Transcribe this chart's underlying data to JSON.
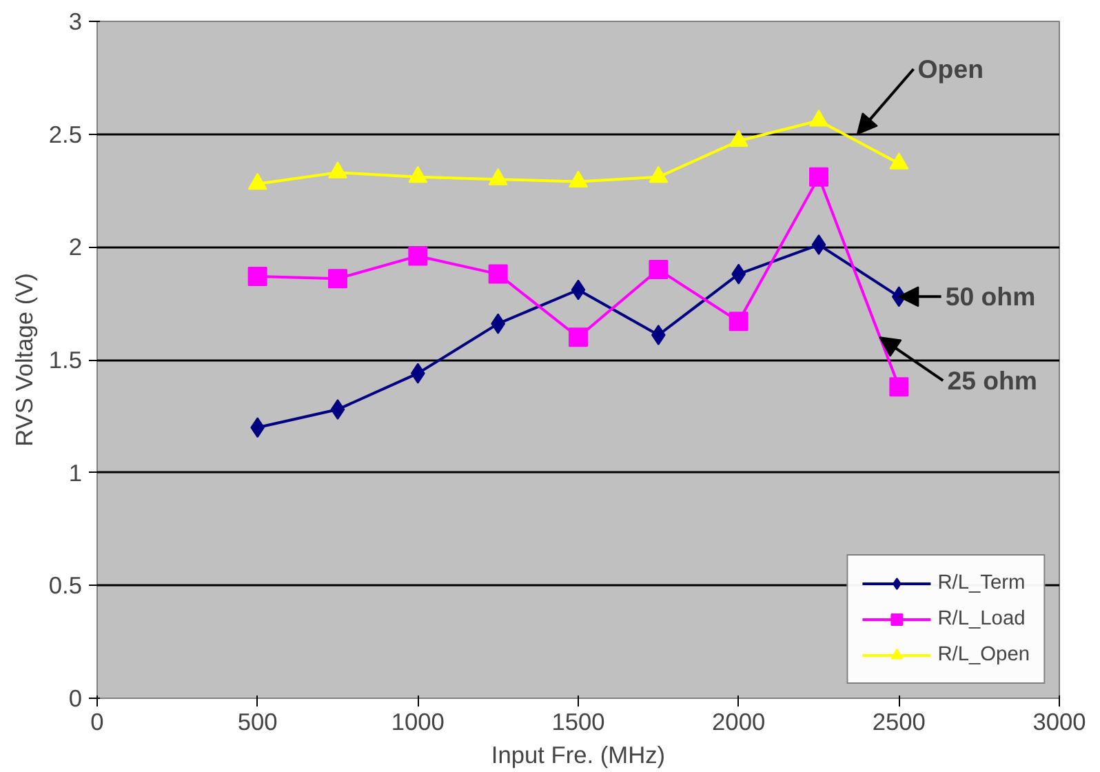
{
  "chart_data": {
    "type": "line",
    "xlabel": "Input Fre. (MHz)",
    "ylabel": "RVS Voltage (V)",
    "x": [
      500,
      750,
      1000,
      1250,
      1500,
      1750,
      2000,
      2250,
      2500
    ],
    "series": [
      {
        "name": "R/L_Term",
        "color": "#000080",
        "marker": "diamond",
        "values": [
          1.2,
          1.28,
          1.44,
          1.66,
          1.81,
          1.61,
          1.88,
          2.01,
          1.78
        ]
      },
      {
        "name": "R/L_Load",
        "color": "#ff00ff",
        "marker": "square",
        "values": [
          1.87,
          1.86,
          1.96,
          1.88,
          1.6,
          1.9,
          1.67,
          2.31,
          1.38
        ]
      },
      {
        "name": "R/L_Open",
        "color": "#ffff00",
        "marker": "triangle",
        "values": [
          2.28,
          2.33,
          2.31,
          2.3,
          2.29,
          2.31,
          2.47,
          2.56,
          2.37
        ]
      }
    ],
    "xlim": [
      0,
      3000
    ],
    "xticks": [
      0,
      500,
      1000,
      1500,
      2000,
      2500,
      3000
    ],
    "ylim": [
      0,
      3
    ],
    "yticks": [
      0,
      0.5,
      1,
      1.5,
      2,
      2.5,
      3
    ],
    "grid": "y",
    "legend": "bottom right",
    "line_style": "solid",
    "annotations": [
      {
        "text": "Open",
        "x": 2370,
        "y": 2.5
      },
      {
        "text": "50 ohm",
        "x": 2500,
        "y": 1.78
      },
      {
        "text": "25 ohm",
        "x": 2440,
        "y": 1.6
      }
    ]
  }
}
